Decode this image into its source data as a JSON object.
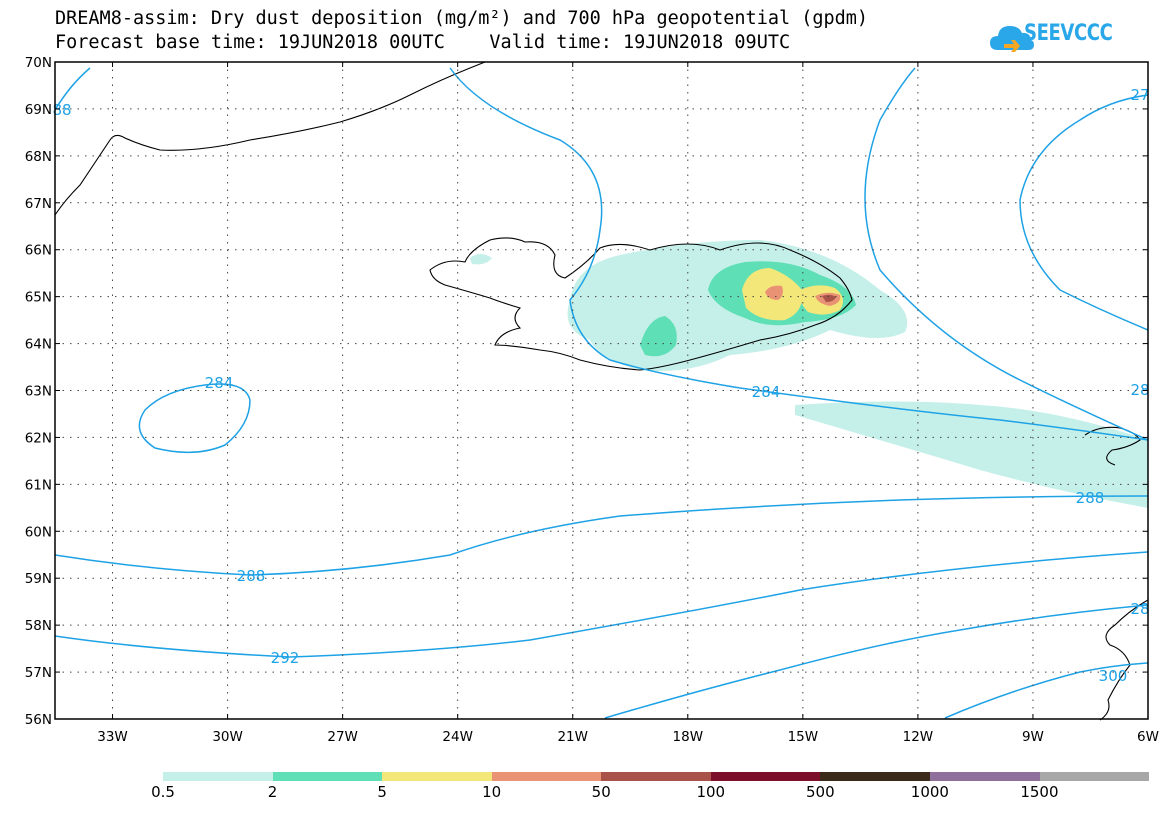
{
  "title": {
    "line1": "DREAM8-assim: Dry dust deposition (mg/m²) and 700 hPa geopotential (gpdm)",
    "line2": "Forecast base time: 19JUN2018 00UTC    Valid time: 19JUN2018 09UTC"
  },
  "logo": {
    "text": "SEEVCCC",
    "icon": "cloud-icon",
    "color": "#2aa7e8"
  },
  "axes": {
    "lat_labels": [
      "70N",
      "69N",
      "68N",
      "67N",
      "66N",
      "65N",
      "64N",
      "63N",
      "62N",
      "61N",
      "60N",
      "59N",
      "58N",
      "57N",
      "56N"
    ],
    "lon_labels": [
      "33W",
      "30W",
      "27W",
      "24W",
      "21W",
      "18W",
      "15W",
      "12W",
      "9W",
      "6W"
    ],
    "lat_range": [
      56,
      70
    ],
    "lon_range": [
      -34.5,
      -6
    ]
  },
  "contours": {
    "color": "#1ea2e6",
    "labels": [
      "284",
      "284",
      "288",
      "288",
      "292",
      "300",
      "27",
      "28",
      "28",
      "88"
    ]
  },
  "legend": {
    "colors": [
      "#c5f0ea",
      "#5fdfb5",
      "#f3e77a",
      "#e99374",
      "#a8524a",
      "#7d0f2a",
      "#3a2a1a",
      "#8f6f9c",
      "#a7a7a7"
    ],
    "labels": [
      "0.5",
      "2",
      "5",
      "10",
      "50",
      "100",
      "500",
      "1000",
      "1500"
    ]
  }
}
